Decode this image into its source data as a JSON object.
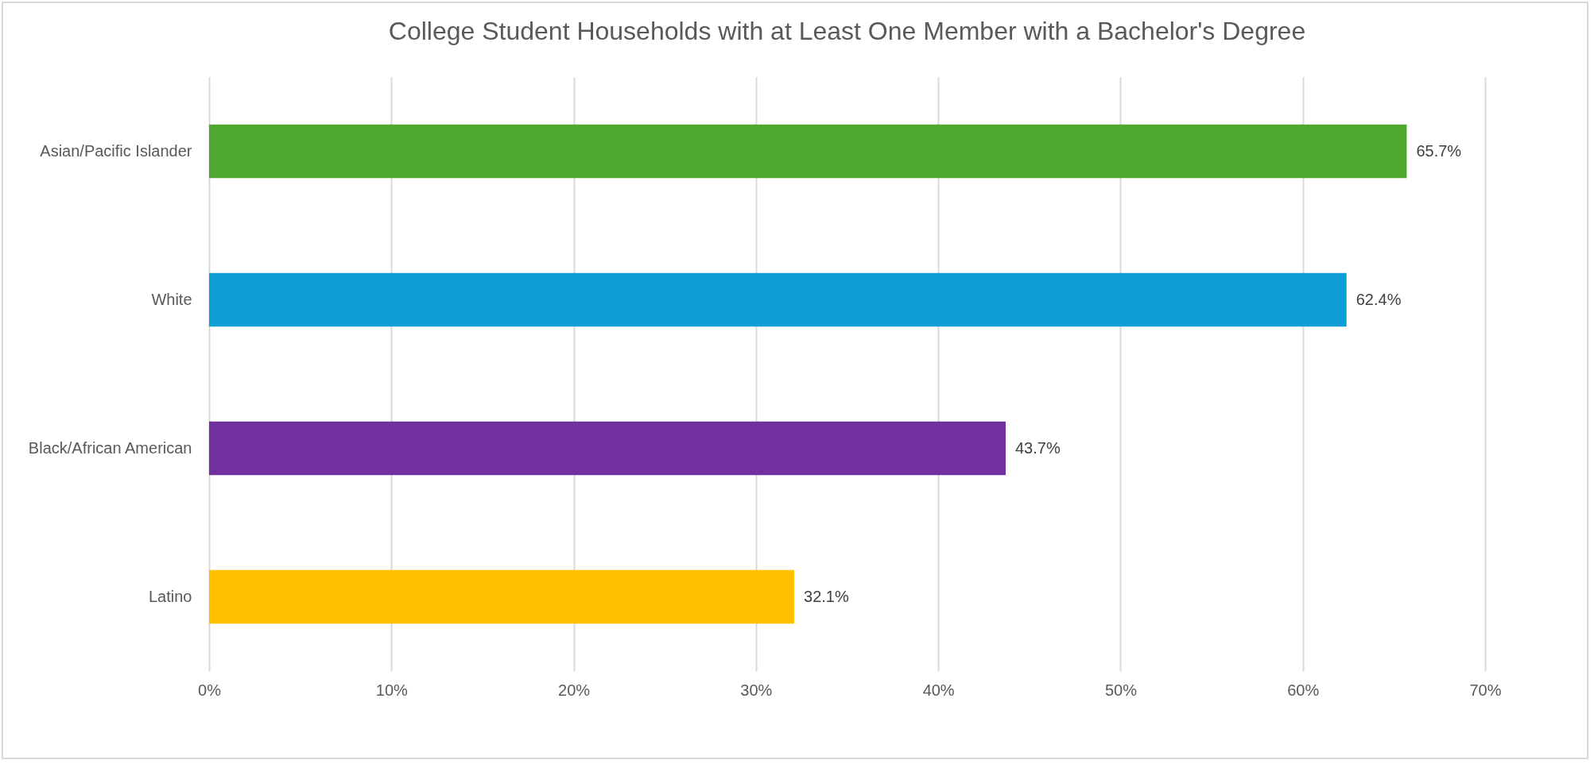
{
  "chart_data": {
    "type": "bar",
    "orientation": "horizontal",
    "title": "College Student Households with at Least One Member with a Bachelor's Degree",
    "categories": [
      "Asian/Pacific Islander",
      "White",
      "Black/African American",
      "Latino"
    ],
    "values": [
      65.7,
      62.4,
      43.7,
      32.1
    ],
    "colors": [
      "#4ea72e",
      "#0f9ed5",
      "#7030a0",
      "#ffc000"
    ],
    "value_labels": [
      "65.7%",
      "62.4%",
      "43.7%",
      "32.1%"
    ],
    "xlim": [
      0,
      70
    ],
    "xticks": [
      {
        "value": 0,
        "label": "0%"
      },
      {
        "value": 10,
        "label": "10%"
      },
      {
        "value": 20,
        "label": "20%"
      },
      {
        "value": 30,
        "label": "30%"
      },
      {
        "value": 40,
        "label": "40%"
      },
      {
        "value": 50,
        "label": "50%"
      },
      {
        "value": 60,
        "label": "60%"
      },
      {
        "value": 70,
        "label": "70%"
      }
    ],
    "grid": "x",
    "legend": false
  }
}
